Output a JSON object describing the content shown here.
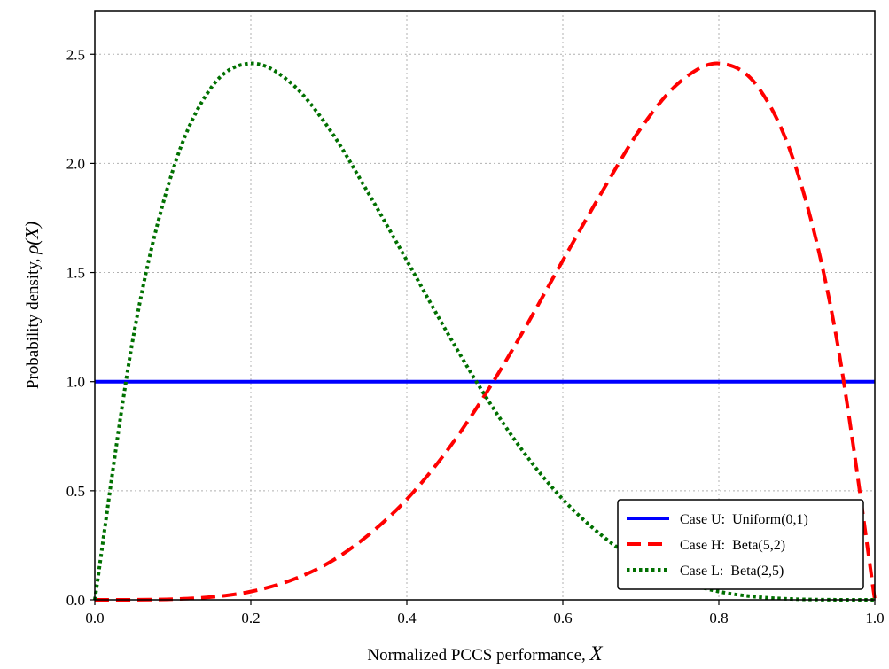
{
  "chart_data": {
    "type": "line",
    "title": "",
    "xlabel_text": "Normalized PCCS performance, ",
    "xlabel_symbol": "X",
    "ylabel_text": "Probability density, ",
    "ylabel_symbol": "ρ(X)",
    "xlim": [
      0.0,
      1.0
    ],
    "ylim": [
      0.0,
      2.7
    ],
    "x_ticks": [
      0.0,
      0.2,
      0.4,
      0.6,
      0.8,
      1.0
    ],
    "x_tick_labels": [
      "0.0",
      "0.2",
      "0.4",
      "0.6",
      "0.8",
      "1.0"
    ],
    "y_ticks": [
      0.0,
      0.5,
      1.0,
      1.5,
      2.0,
      2.5
    ],
    "y_tick_labels": [
      "0.0",
      "0.5",
      "1.0",
      "1.5",
      "2.0",
      "2.5"
    ],
    "grid": true,
    "legend_position": "bottom-right",
    "x": [
      0.0,
      0.05,
      0.1,
      0.15,
      0.2,
      0.25,
      0.3,
      0.35,
      0.4,
      0.45,
      0.5,
      0.55,
      0.6,
      0.65,
      0.7,
      0.75,
      0.8,
      0.85,
      0.9,
      0.95,
      1.0
    ],
    "series": [
      {
        "name": "Case U:  Uniform(0,1)",
        "color": "#0000ff",
        "style": "solid",
        "values": [
          1.0,
          1.0,
          1.0,
          1.0,
          1.0,
          1.0,
          1.0,
          1.0,
          1.0,
          1.0,
          1.0,
          1.0,
          1.0,
          1.0,
          1.0,
          1.0,
          1.0,
          1.0,
          1.0,
          1.0,
          1.0
        ]
      },
      {
        "name": "Case H:  Beta(5,2)",
        "color": "#ff0000",
        "style": "dashed",
        "values": [
          0.0,
          0.0002,
          0.003,
          0.013,
          0.038,
          0.088,
          0.17,
          0.295,
          0.461,
          0.676,
          0.938,
          1.236,
          1.555,
          1.868,
          2.161,
          2.373,
          2.458,
          2.351,
          1.968,
          1.218,
          0.0
        ]
      },
      {
        "name": "Case L:  Beta(2,5)",
        "color": "#007000",
        "style": "dotted",
        "values": [
          0.0,
          1.218,
          1.968,
          2.351,
          2.458,
          2.373,
          2.161,
          1.868,
          1.555,
          1.236,
          0.938,
          0.676,
          0.461,
          0.295,
          0.17,
          0.088,
          0.038,
          0.013,
          0.003,
          0.0002,
          0.0
        ]
      }
    ]
  }
}
